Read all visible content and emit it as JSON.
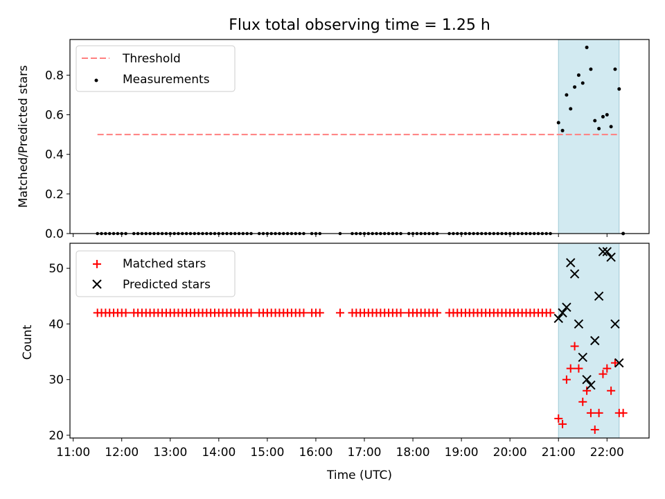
{
  "figure_title": "Flux total observing time = 1.25 h",
  "chart_data": [
    {
      "type": "scatter",
      "ylabel": "Matched/Predicted stars",
      "ylim": [
        0.0,
        0.98
      ],
      "yticks": [
        "0.0",
        "0.2",
        "0.4",
        "0.6",
        "0.8"
      ],
      "xlim": [
        "10:56",
        "22:52"
      ],
      "grid": false,
      "legend_position": "top-left",
      "shaded_region": {
        "x_start": "21:00",
        "x_end": "22:15",
        "color": "#add8e6"
      },
      "series": [
        {
          "name": "Threshold",
          "kind": "dashed-line",
          "color": "#ff7f7f",
          "x": [
            "11:30",
            "22:15"
          ],
          "y": [
            0.5,
            0.5
          ]
        },
        {
          "name": "Measurements",
          "kind": "points",
          "color": "#000000",
          "x": [
            "21:00",
            "21:05",
            "21:10",
            "21:15",
            "21:20",
            "21:25",
            "21:30",
            "21:35",
            "21:40",
            "21:45",
            "21:50",
            "21:55",
            "22:00",
            "22:05",
            "22:10",
            "22:15",
            "22:20"
          ],
          "y": [
            0.56,
            0.52,
            0.7,
            0.63,
            0.74,
            0.8,
            0.76,
            0.94,
            0.83,
            0.57,
            0.53,
            0.59,
            0.6,
            0.54,
            0.83,
            0.73,
            0.0
          ],
          "zero_runs": [
            [
              "11:30",
              "12:05"
            ],
            [
              "12:15",
              "14:40"
            ],
            [
              "14:50",
              "15:45"
            ],
            [
              "15:55",
              "16:05"
            ],
            [
              "16:30",
              "16:30"
            ],
            [
              "16:45",
              "17:45"
            ],
            [
              "17:55",
              "18:30"
            ],
            [
              "18:45",
              "20:50"
            ]
          ]
        }
      ]
    },
    {
      "type": "scatter",
      "xlabel": "Time (UTC)",
      "ylabel": "Count",
      "ylim": [
        19.5,
        54.5
      ],
      "yticks": [
        "20",
        "30",
        "40",
        "50"
      ],
      "xlim": [
        "10:56",
        "22:52"
      ],
      "xticks": [
        "11:00",
        "12:00",
        "13:00",
        "14:00",
        "15:00",
        "16:00",
        "17:00",
        "18:00",
        "19:00",
        "20:00",
        "21:00",
        "22:00"
      ],
      "grid": false,
      "legend_position": "top-left",
      "shaded_region": {
        "x_start": "21:00",
        "x_end": "22:15",
        "color": "#add8e6"
      },
      "series": [
        {
          "name": "Matched stars",
          "marker": "+",
          "color": "#ff0000",
          "x": [
            "21:00",
            "21:05",
            "21:10",
            "21:15",
            "21:20",
            "21:25",
            "21:30",
            "21:35",
            "21:40",
            "21:45",
            "21:50",
            "21:55",
            "22:00",
            "22:05",
            "22:10",
            "22:15",
            "22:20"
          ],
          "y": [
            23,
            22,
            30,
            32,
            36,
            32,
            26,
            28,
            24,
            21,
            24,
            31,
            32,
            28,
            33,
            24,
            24
          ],
          "constant_runs": [
            {
              "value": 42,
              "from": "11:30",
              "to": "12:05"
            },
            {
              "value": 42,
              "from": "12:15",
              "to": "14:40"
            },
            {
              "value": 42,
              "from": "14:50",
              "to": "15:45"
            },
            {
              "value": 42,
              "from": "15:55",
              "to": "16:05"
            },
            {
              "value": 42,
              "from": "16:30",
              "to": "16:30"
            },
            {
              "value": 42,
              "from": "16:45",
              "to": "17:45"
            },
            {
              "value": 42,
              "from": "17:55",
              "to": "18:30"
            },
            {
              "value": 42,
              "from": "18:45",
              "to": "20:50"
            }
          ]
        },
        {
          "name": "Predicted stars",
          "marker": "x",
          "color": "#000000",
          "x": [
            "21:00",
            "21:05",
            "21:10",
            "21:15",
            "21:20",
            "21:25",
            "21:30",
            "21:35",
            "21:40",
            "21:45",
            "21:50",
            "21:55",
            "22:00",
            "22:05",
            "22:10",
            "22:15"
          ],
          "y": [
            41,
            42,
            43,
            51,
            49,
            40,
            34,
            30,
            29,
            37,
            45,
            53,
            53,
            52,
            40,
            33
          ]
        }
      ]
    }
  ]
}
